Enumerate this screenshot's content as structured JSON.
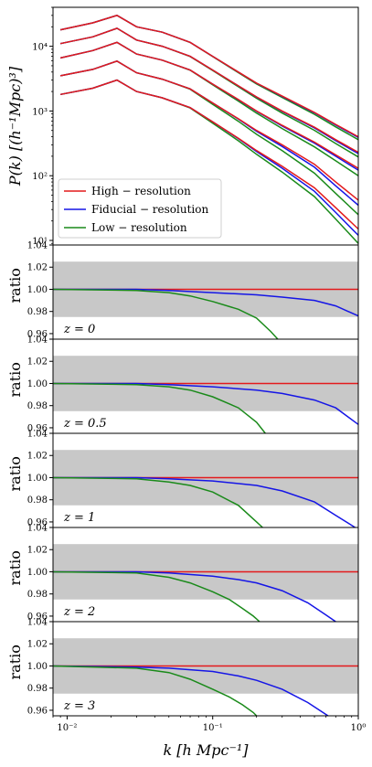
{
  "chart_data": {
    "type": "line",
    "x_scale": "log",
    "xlim": [
      0.008,
      1.0
    ],
    "xlabel": "k [h Mpc⁻¹]",
    "x_tick_labels": [
      "10⁻²",
      "10⁻¹",
      "10⁰"
    ],
    "top_panel": {
      "ylabel": "P(k) [(h⁻¹Mpc)³]",
      "y_scale": "log",
      "ylim": [
        8.5,
        40000
      ],
      "y_tick_labels": [
        "10¹",
        "10²",
        "10³",
        "10⁴"
      ],
      "legend_position": "lower-left",
      "legend": [
        {
          "label": "High − resolution",
          "color": "#e31a1c"
        },
        {
          "label": "Fiducial − resolution",
          "color": "#1515e6"
        },
        {
          "label": "Low − resolution",
          "color": "#1a8a1a"
        }
      ],
      "k_values": [
        0.009,
        0.015,
        0.022,
        0.03,
        0.045,
        0.07,
        0.1,
        0.15,
        0.2,
        0.3,
        0.5,
        0.7,
        1.0
      ],
      "curves": [
        {
          "z": "0",
          "high": [
            18000,
            23000,
            30000,
            20000,
            16500,
            11500,
            7000,
            4000,
            2700,
            1700,
            950,
            620,
            400
          ],
          "fiducial_end": 390,
          "low_end": 360
        },
        {
          "z": "0.5",
          "high": [
            11000,
            14000,
            19000,
            12500,
            10000,
            7000,
            4300,
            2450,
            1650,
            1000,
            560,
            360,
            230
          ],
          "fiducial_end": 220,
          "low_end": 195
        },
        {
          "z": "1",
          "high": [
            6600,
            8600,
            11500,
            7600,
            6100,
            4300,
            2600,
            1500,
            1000,
            600,
            330,
            210,
            130
          ],
          "fiducial_end": 122,
          "low_end": 100
        },
        {
          "z": "2",
          "high": [
            3500,
            4400,
            5900,
            3900,
            3100,
            2200,
            1330,
            760,
            500,
            300,
            150,
            80,
            42
          ],
          "fiducial_end": 35,
          "low_end": 25
        },
        {
          "z": "3",
          "high": [
            1800,
            2250,
            3000,
            2000,
            1600,
            1130,
            680,
            380,
            245,
            140,
            65,
            32,
            15
          ],
          "fiducial_end": 12,
          "low_end": 9
        }
      ]
    },
    "ratio_panels": {
      "ylabel": "ratio",
      "ylim": [
        0.955,
        1.04
      ],
      "y_tick_labels": [
        "0.96",
        "0.98",
        "1.00",
        "1.02",
        "1.04"
      ],
      "shaded_band": [
        0.975,
        1.025
      ],
      "panels": [
        {
          "z_label": "z = 0",
          "fiducial": {
            "k": [
              0.008,
              0.03,
              0.05,
              0.1,
              0.2,
              0.3,
              0.5,
              0.7,
              1.0
            ],
            "ratio": [
              1.0,
              1.0,
              0.999,
              0.997,
              0.995,
              0.993,
              0.99,
              0.985,
              0.976
            ]
          },
          "low": {
            "k": [
              0.008,
              0.03,
              0.05,
              0.07,
              0.1,
              0.15,
              0.2,
              0.25,
              0.28
            ],
            "ratio": [
              1.0,
              0.999,
              0.997,
              0.994,
              0.989,
              0.982,
              0.974,
              0.962,
              0.955
            ]
          }
        },
        {
          "z_label": "z = 0.5",
          "fiducial": {
            "k": [
              0.008,
              0.03,
              0.05,
              0.1,
              0.2,
              0.3,
              0.5,
              0.7,
              1.0
            ],
            "ratio": [
              1.0,
              1.0,
              0.999,
              0.997,
              0.994,
              0.991,
              0.985,
              0.978,
              0.963
            ]
          },
          "low": {
            "k": [
              0.008,
              0.03,
              0.05,
              0.07,
              0.1,
              0.15,
              0.2,
              0.23
            ],
            "ratio": [
              1.0,
              0.999,
              0.997,
              0.994,
              0.988,
              0.978,
              0.965,
              0.955
            ]
          }
        },
        {
          "z_label": "z = 1",
          "fiducial": {
            "k": [
              0.008,
              0.03,
              0.05,
              0.1,
              0.2,
              0.3,
              0.5,
              0.7,
              0.95
            ],
            "ratio": [
              1.0,
              1.0,
              0.999,
              0.997,
              0.993,
              0.988,
              0.978,
              0.966,
              0.955
            ]
          },
          "low": {
            "k": [
              0.008,
              0.03,
              0.05,
              0.07,
              0.1,
              0.15,
              0.2,
              0.22
            ],
            "ratio": [
              1.0,
              0.999,
              0.996,
              0.993,
              0.987,
              0.975,
              0.96,
              0.955
            ]
          }
        },
        {
          "z_label": "z = 2",
          "fiducial": {
            "k": [
              0.008,
              0.03,
              0.05,
              0.1,
              0.15,
              0.2,
              0.3,
              0.45,
              0.6,
              0.7
            ],
            "ratio": [
              1.0,
              1.0,
              0.999,
              0.996,
              0.993,
              0.99,
              0.983,
              0.972,
              0.961,
              0.955
            ]
          },
          "low": {
            "k": [
              0.008,
              0.03,
              0.05,
              0.07,
              0.1,
              0.13,
              0.16,
              0.19,
              0.21
            ],
            "ratio": [
              1.0,
              0.999,
              0.995,
              0.99,
              0.982,
              0.975,
              0.967,
              0.96,
              0.955
            ]
          }
        },
        {
          "z_label": "z = 3",
          "fiducial": {
            "k": [
              0.008,
              0.03,
              0.05,
              0.1,
              0.15,
              0.2,
              0.3,
              0.45,
              0.62
            ],
            "ratio": [
              1.0,
              0.999,
              0.998,
              0.995,
              0.991,
              0.987,
              0.979,
              0.967,
              0.955
            ]
          },
          "low": {
            "k": [
              0.008,
              0.03,
              0.05,
              0.07,
              0.1,
              0.13,
              0.16,
              0.19,
              0.2
            ],
            "ratio": [
              1.0,
              0.998,
              0.994,
              0.988,
              0.979,
              0.972,
              0.965,
              0.958,
              0.955
            ]
          }
        }
      ]
    }
  }
}
